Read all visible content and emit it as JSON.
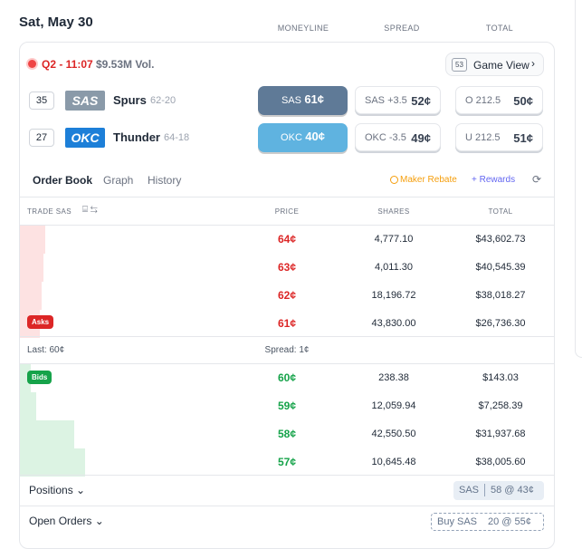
{
  "header": {
    "date": "Sat, May 30",
    "columns": [
      "MONEYLINE",
      "SPREAD",
      "TOTAL"
    ]
  },
  "game": {
    "status": "Q2 - 11:07",
    "volume": "$9.53M Vol.",
    "game_view_count": "53",
    "game_view": "Game View",
    "teams": [
      {
        "rank": "35",
        "abbr": "SAS",
        "name": "Spurs",
        "record": "62-20",
        "moneyline_label": "SAS",
        "moneyline_price": "61¢",
        "spread_label": "SAS +3.5",
        "spread_price": "52¢",
        "total_label": "O 212.5",
        "total_price": "50¢"
      },
      {
        "rank": "27",
        "abbr": "OKC",
        "name": "Thunder",
        "record": "64-18",
        "moneyline_label": "OKC",
        "moneyline_price": "40¢",
        "spread_label": "OKC -3.5",
        "spread_price": "49¢",
        "total_label": "U 212.5",
        "total_price": "51¢"
      }
    ]
  },
  "tabs": [
    "Order Book",
    "Graph",
    "History"
  ],
  "promos": {
    "maker_rebate": "Maker Rebate",
    "rewards": "+ Rewards"
  },
  "order_book": {
    "columns": [
      "TRADE SAS",
      "PRICE",
      "SHARES",
      "TOTAL"
    ],
    "asks_label": "Asks",
    "bids_label": "Bids",
    "asks": [
      [
        "64¢",
        "4,777.10",
        "$43,602.73"
      ],
      [
        "63¢",
        "4,011.30",
        "$40,545.39"
      ],
      [
        "62¢",
        "18,196.72",
        "$38,018.27"
      ],
      [
        "61¢",
        "43,830.00",
        "$26,736.30"
      ]
    ],
    "last": "Last: 60¢",
    "spread": "Spread: 1¢",
    "bids": [
      [
        "60¢",
        "238.38",
        "$143.03"
      ],
      [
        "59¢",
        "12,059.94",
        "$7,258.39"
      ],
      [
        "58¢",
        "42,550.50",
        "$31,937.68"
      ],
      [
        "57¢",
        "10,645.48",
        "$38,005.60"
      ]
    ]
  },
  "positions": {
    "title": "Positions",
    "side": "SAS",
    "detail": "58 @ 43¢"
  },
  "open_orders": {
    "title": "Open Orders",
    "side": "Buy SAS",
    "detail": "20 @ 55¢"
  }
}
